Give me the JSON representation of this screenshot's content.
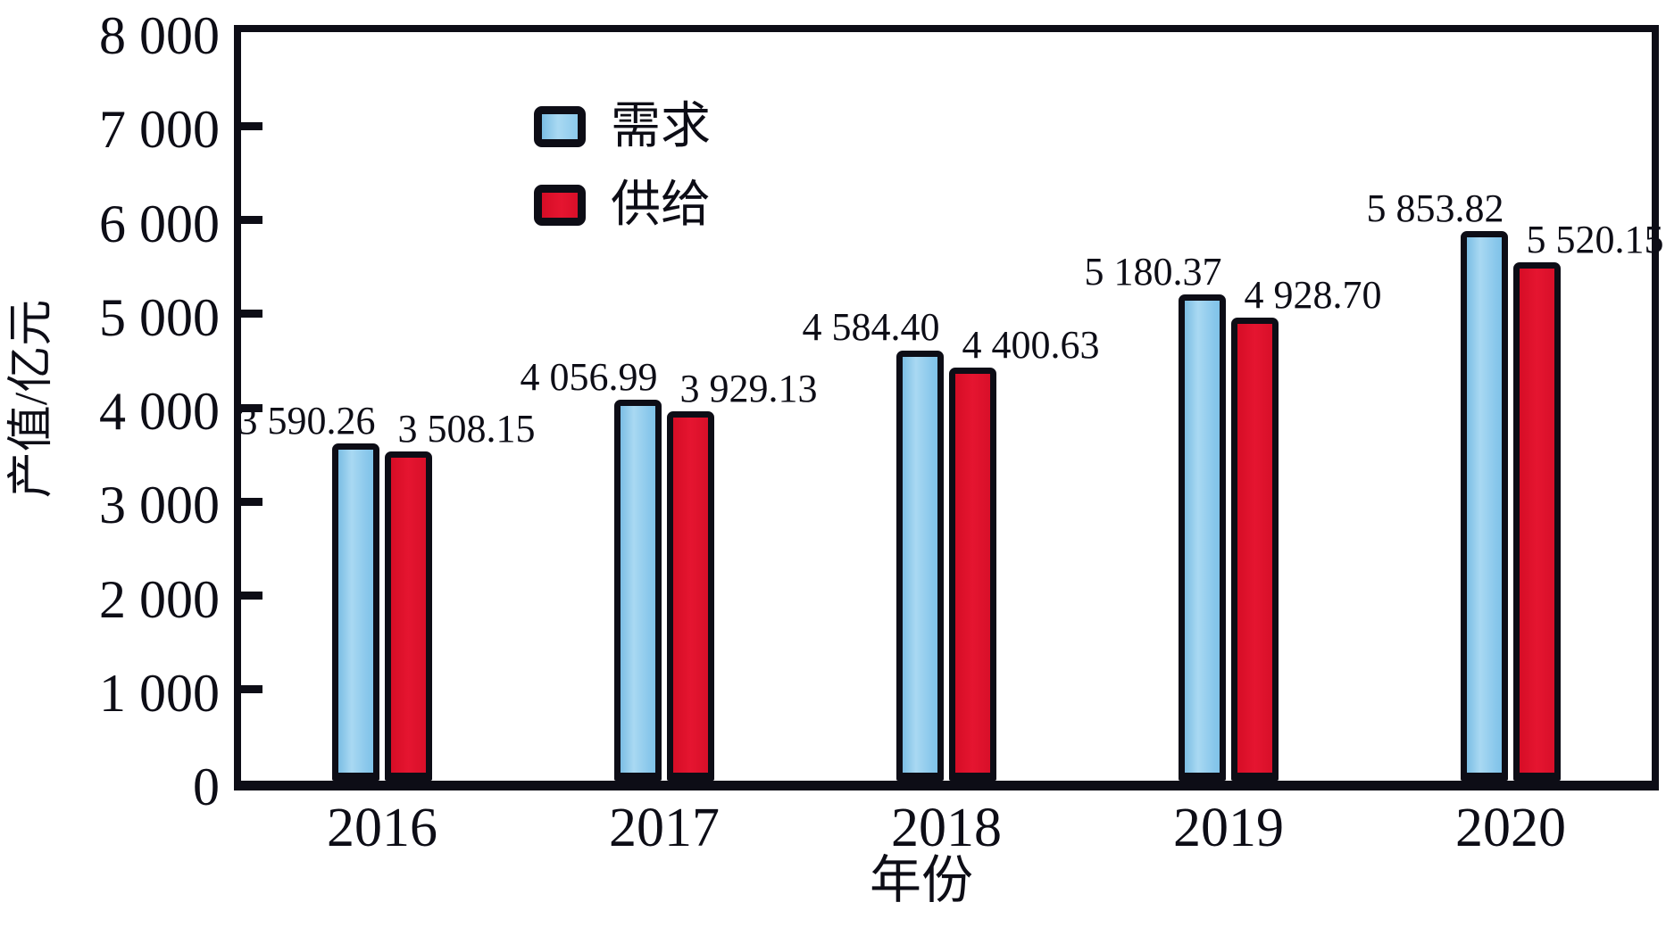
{
  "chart_data": {
    "type": "bar",
    "title": "",
    "xlabel": "年份",
    "ylabel": "产值/亿元",
    "categories": [
      "2016",
      "2017",
      "2018",
      "2019",
      "2020"
    ],
    "series": [
      {
        "name": "需求",
        "color": "#8CC9EC",
        "values": [
          3590.26,
          4056.99,
          4584.4,
          5180.37,
          5853.82
        ],
        "value_labels": [
          "3 590.26",
          "4 056.99",
          "4 584.40",
          "5 180.37",
          "5 853.82"
        ]
      },
      {
        "name": "供给",
        "color": "#DD102B",
        "values": [
          3508.15,
          3929.13,
          4400.63,
          4928.7,
          5520.15
        ],
        "value_labels": [
          "3 508.15",
          "3 929.13",
          "4 400.63",
          "4 928.70",
          "5 520.15"
        ]
      }
    ],
    "ylim": [
      0,
      8000
    ],
    "yticks": [
      {
        "v": 0,
        "label": "0"
      },
      {
        "v": 1000,
        "label": "1 000"
      },
      {
        "v": 2000,
        "label": "2 000"
      },
      {
        "v": 3000,
        "label": "3 000"
      },
      {
        "v": 4000,
        "label": "4 000"
      },
      {
        "v": 5000,
        "label": "5 000"
      },
      {
        "v": 6000,
        "label": "6 000"
      },
      {
        "v": 7000,
        "label": "7 000"
      },
      {
        "v": 8000,
        "label": "8 000"
      }
    ],
    "grid": false,
    "legend_position": "inside top-left",
    "border_color": "#0D0D16"
  },
  "axes": {
    "x_title": "年份",
    "y_title": "产值/亿元"
  },
  "legend": {
    "items": [
      {
        "label": "需求",
        "color": "#8CC9EC"
      },
      {
        "label": "供给",
        "color": "#DD102B"
      }
    ]
  }
}
